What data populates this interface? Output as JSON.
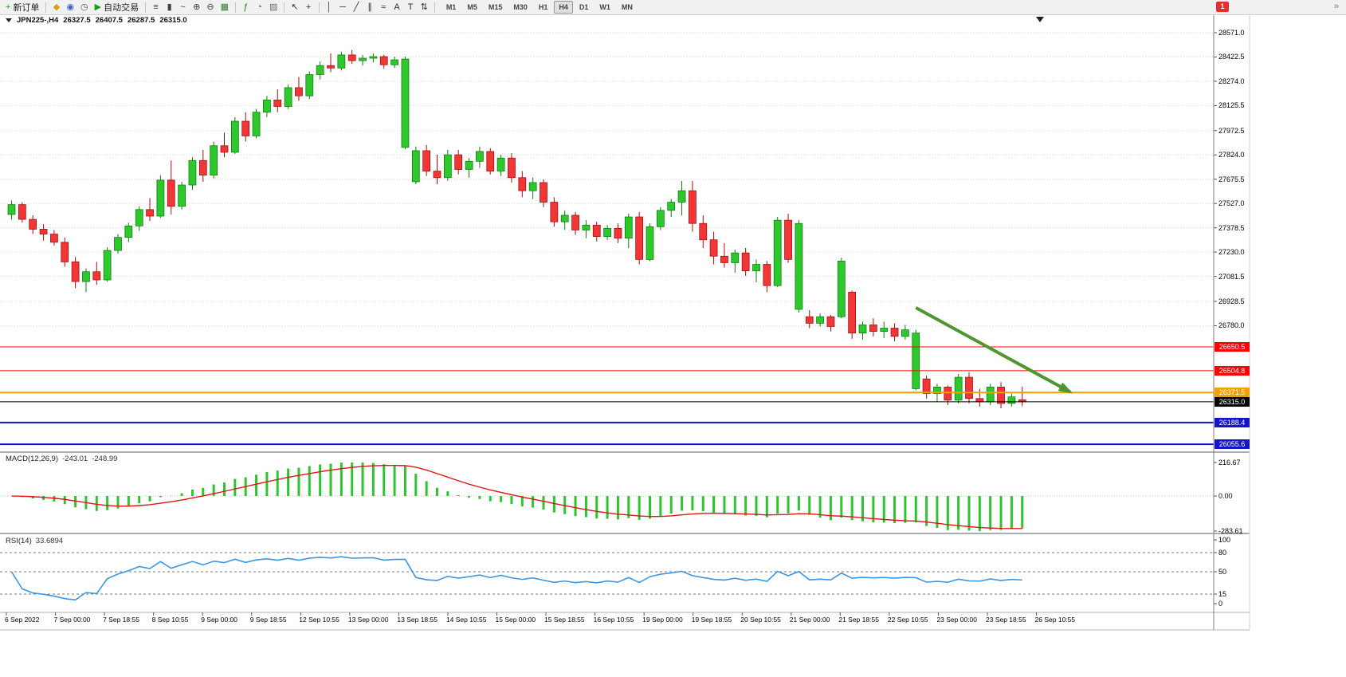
{
  "toolbar": {
    "buttons": [
      {
        "name": "new-order",
        "glyph": "+",
        "color": "#1a9c1a",
        "label": "新订单"
      },
      {
        "name": "sep"
      },
      {
        "name": "metaeditor",
        "glyph": "◆",
        "color": "#d4a017"
      },
      {
        "name": "options",
        "glyph": "◉",
        "color": "#3465c0"
      },
      {
        "name": "history-center",
        "glyph": "◷",
        "color": "#555555"
      },
      {
        "name": "autotrading",
        "glyph": "▶",
        "color": "#18a018",
        "label": "自动交易"
      },
      {
        "name": "sep"
      },
      {
        "name": "bar-chart",
        "glyph": "≡",
        "color": "#404040"
      },
      {
        "name": "candlestick-chart",
        "glyph": "▮",
        "color": "#404040"
      },
      {
        "name": "line-chart",
        "glyph": "~",
        "color": "#404040"
      },
      {
        "name": "zoom-in",
        "glyph": "⊕",
        "color": "#404040"
      },
      {
        "name": "zoom-out",
        "glyph": "⊖",
        "color": "#404040"
      },
      {
        "name": "tile-windows",
        "glyph": "▦",
        "color": "#2f7a2f"
      },
      {
        "name": "sep"
      },
      {
        "name": "indicators",
        "glyph": "ƒ",
        "color": "#1a7a1a"
      },
      {
        "name": "periods",
        "glyph": "◔",
        "color": "#3465c0"
      },
      {
        "name": "templates",
        "glyph": "▧",
        "color": "#707070"
      },
      {
        "name": "sep"
      },
      {
        "name": "cursor",
        "glyph": "↖",
        "color": "#303030"
      },
      {
        "name": "crosshair",
        "glyph": "+",
        "color": "#303030"
      },
      {
        "name": "sep"
      },
      {
        "name": "vertical-line",
        "glyph": "│",
        "color": "#303030"
      },
      {
        "name": "horizontal-line",
        "glyph": "─",
        "color": "#303030"
      },
      {
        "name": "trendline",
        "glyph": "╱",
        "color": "#303030"
      },
      {
        "name": "equidistant-channel",
        "glyph": "∥",
        "color": "#303030"
      },
      {
        "name": "fibonacci",
        "glyph": "≈",
        "color": "#303030"
      },
      {
        "name": "text",
        "glyph": "A",
        "color": "#303030"
      },
      {
        "name": "text-label",
        "glyph": "T",
        "color": "#303030"
      },
      {
        "name": "arrows",
        "glyph": "⇅",
        "color": "#303030"
      },
      {
        "name": "sep"
      }
    ],
    "timeframes": {
      "items": [
        "M1",
        "M5",
        "M15",
        "M30",
        "H1",
        "H4",
        "D1",
        "W1",
        "MN"
      ],
      "active": "H4"
    },
    "notification_count": "1",
    "overflow_glyph": "»"
  },
  "chart": {
    "title": "JPN225-,H4",
    "ohlc_display": {
      "open": "26327.5",
      "high": "26407.5",
      "low": "26287.5",
      "close": "26315.0"
    }
  },
  "chart_data": {
    "type": "candlestick",
    "symbol": "JPN225-",
    "timeframe": "H4",
    "colors": {
      "up": "#2cc82c",
      "up_border": "#117a11",
      "down": "#f23535",
      "down_border": "#9e0f0f",
      "grid": "#d9d9d9"
    },
    "y_axis_ticks": [
      "28571.0",
      "28422.5",
      "28274.0",
      "28125.5",
      "27972.5",
      "27824.0",
      "27675.5",
      "27527.0",
      "27378.5",
      "27230.0",
      "27081.5",
      "26928.5",
      "26780.0"
    ],
    "x_labels": [
      "6 Sep 2022",
      "7 Sep 00:00",
      "7 Sep 18:55",
      "8 Sep 10:55",
      "9 Sep 00:00",
      "9 Sep 18:55",
      "12 Sep 10:55",
      "13 Sep 00:00",
      "13 Sep 18:55",
      "14 Sep 10:55",
      "15 Sep 00:00",
      "15 Sep 18:55",
      "16 Sep 10:55",
      "19 Sep 00:00",
      "19 Sep 18:55",
      "20 Sep 10:55",
      "21 Sep 00:00",
      "21 Sep 18:55",
      "22 Sep 10:55",
      "23 Sep 00:00",
      "23 Sep 18:55",
      "26 Sep 10:55"
    ],
    "ohlc": [
      [
        27460,
        27545,
        27430,
        27520
      ],
      [
        27520,
        27535,
        27410,
        27430
      ],
      [
        27430,
        27455,
        27340,
        27370
      ],
      [
        27370,
        27400,
        27300,
        27340
      ],
      [
        27340,
        27365,
        27270,
        27290
      ],
      [
        27290,
        27320,
        27140,
        27170
      ],
      [
        27170,
        27200,
        27010,
        27050
      ],
      [
        27050,
        27130,
        26985,
        27110
      ],
      [
        27110,
        27170,
        27030,
        27060
      ],
      [
        27060,
        27260,
        27050,
        27240
      ],
      [
        27240,
        27340,
        27220,
        27320
      ],
      [
        27320,
        27410,
        27290,
        27390
      ],
      [
        27390,
        27510,
        27360,
        27490
      ],
      [
        27490,
        27560,
        27420,
        27450
      ],
      [
        27450,
        27700,
        27440,
        27670
      ],
      [
        27670,
        27790,
        27460,
        27510
      ],
      [
        27510,
        27660,
        27490,
        27640
      ],
      [
        27640,
        27810,
        27610,
        27790
      ],
      [
        27790,
        27855,
        27660,
        27700
      ],
      [
        27700,
        27905,
        27680,
        27880
      ],
      [
        27880,
        27960,
        27810,
        27840
      ],
      [
        27840,
        28055,
        27830,
        28030
      ],
      [
        28030,
        28085,
        27905,
        27940
      ],
      [
        27940,
        28105,
        27925,
        28085
      ],
      [
        28085,
        28185,
        28055,
        28160
      ],
      [
        28160,
        28225,
        28085,
        28120
      ],
      [
        28120,
        28255,
        28105,
        28235
      ],
      [
        28235,
        28300,
        28155,
        28185
      ],
      [
        28185,
        28335,
        28165,
        28315
      ],
      [
        28315,
        28395,
        28285,
        28370
      ],
      [
        28370,
        28445,
        28330,
        28355
      ],
      [
        28355,
        28455,
        28340,
        28435
      ],
      [
        28435,
        28465,
        28380,
        28400
      ],
      [
        28400,
        28435,
        28370,
        28415
      ],
      [
        28415,
        28445,
        28390,
        28425
      ],
      [
        28425,
        28435,
        28350,
        28375
      ],
      [
        28375,
        28425,
        28355,
        28405
      ],
      [
        27870,
        28425,
        27860,
        28410
      ],
      [
        27660,
        27875,
        27645,
        27850
      ],
      [
        27850,
        27885,
        27695,
        27725
      ],
      [
        27725,
        27825,
        27645,
        27685
      ],
      [
        27685,
        27855,
        27665,
        27825
      ],
      [
        27825,
        27855,
        27705,
        27735
      ],
      [
        27735,
        27805,
        27685,
        27785
      ],
      [
        27785,
        27875,
        27745,
        27845
      ],
      [
        27845,
        27865,
        27705,
        27725
      ],
      [
        27725,
        27825,
        27695,
        27805
      ],
      [
        27805,
        27835,
        27655,
        27685
      ],
      [
        27685,
        27725,
        27565,
        27605
      ],
      [
        27605,
        27685,
        27555,
        27655
      ],
      [
        27655,
        27675,
        27505,
        27535
      ],
      [
        27535,
        27565,
        27385,
        27415
      ],
      [
        27415,
        27485,
        27365,
        27455
      ],
      [
        27455,
        27475,
        27335,
        27365
      ],
      [
        27365,
        27425,
        27315,
        27395
      ],
      [
        27395,
        27415,
        27295,
        27325
      ],
      [
        27325,
        27395,
        27305,
        27375
      ],
      [
        27375,
        27405,
        27285,
        27315
      ],
      [
        27315,
        27465,
        27255,
        27445
      ],
      [
        27445,
        27475,
        27155,
        27185
      ],
      [
        27185,
        27405,
        27175,
        27385
      ],
      [
        27385,
        27505,
        27365,
        27485
      ],
      [
        27485,
        27555,
        27445,
        27535
      ],
      [
        27535,
        27665,
        27455,
        27605
      ],
      [
        27605,
        27665,
        27355,
        27405
      ],
      [
        27405,
        27455,
        27255,
        27305
      ],
      [
        27305,
        27355,
        27155,
        27205
      ],
      [
        27205,
        27285,
        27135,
        27165
      ],
      [
        27165,
        27245,
        27105,
        27225
      ],
      [
        27225,
        27255,
        27085,
        27115
      ],
      [
        27115,
        27185,
        27045,
        27155
      ],
      [
        27155,
        27175,
        26985,
        27025
      ],
      [
        27025,
        27445,
        27015,
        27425
      ],
      [
        27425,
        27465,
        27165,
        27185
      ],
      [
        26880,
        27425,
        26860,
        27405
      ],
      [
        26835,
        26875,
        26765,
        26795
      ],
      [
        26795,
        26855,
        26775,
        26835
      ],
      [
        26835,
        26845,
        26745,
        26775
      ],
      [
        26835,
        27195,
        26825,
        27175
      ],
      [
        26985,
        26995,
        26700,
        26735
      ],
      [
        26735,
        26805,
        26695,
        26785
      ],
      [
        26785,
        26825,
        26715,
        26745
      ],
      [
        26745,
        26805,
        26705,
        26765
      ],
      [
        26765,
        26795,
        26685,
        26715
      ],
      [
        26715,
        26785,
        26695,
        26755
      ],
      [
        26395,
        26755,
        26385,
        26735
      ],
      [
        26455,
        26475,
        26335,
        26365
      ],
      [
        26365,
        26425,
        26315,
        26405
      ],
      [
        26405,
        26415,
        26295,
        26325
      ],
      [
        26325,
        26485,
        26305,
        26465
      ],
      [
        26465,
        26495,
        26305,
        26335
      ],
      [
        26335,
        26395,
        26285,
        26315
      ],
      [
        26315,
        26425,
        26295,
        26405
      ],
      [
        26405,
        26435,
        26275,
        26305
      ],
      [
        26305,
        26365,
        26285,
        26345
      ],
      [
        26327.5,
        26407.5,
        26287.5,
        26315
      ]
    ],
    "price_lines": [
      {
        "value": 26650.5,
        "label": "26650.5",
        "color": "#ff0000",
        "width": 1
      },
      {
        "value": 26504.8,
        "label": "26504.8",
        "color": "#ff0000",
        "width": 1
      },
      {
        "value": 26371.5,
        "label": "26371.5",
        "color": "#f0a000",
        "width": 2
      },
      {
        "value": 26188.4,
        "label": "26188.4",
        "color": "#1414c8",
        "width": 2
      },
      {
        "value": 26055.6,
        "label": "26055.6",
        "color": "#1414c8",
        "width": 2
      }
    ],
    "current_price": {
      "value": 26315.0,
      "label": "26315.0",
      "color": "#000000"
    },
    "arrow": {
      "color": "#4e9630",
      "from": {
        "index": 85,
        "price": 26890
      },
      "to": {
        "index": 99.5,
        "price": 26375
      }
    },
    "macd": {
      "label": "MACD(12,26,9)",
      "macd_value": "-243.01",
      "signal_value": "-248.99",
      "axis": [
        "216.67",
        "0.00",
        "-283.61"
      ],
      "histogram_color": "#2fc42f",
      "signal_color": "#e01515",
      "params": [
        12,
        26,
        9
      ]
    },
    "rsi": {
      "label": "RSI(14)",
      "value_label": "33.6894",
      "axis": [
        "100",
        "80",
        "50",
        "15",
        "0"
      ],
      "levels": [
        80,
        50,
        15
      ],
      "line_color": "#3b97e3",
      "period": 14
    }
  }
}
